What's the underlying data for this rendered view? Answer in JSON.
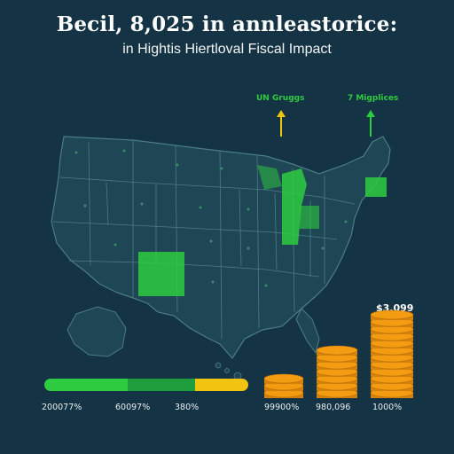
{
  "header": {
    "title": "Becil, 8,025 in annleastorice:",
    "subtitle": "in Hightis Hiertloval Fiscal Impact"
  },
  "callouts": [
    {
      "label": "UN Gruggs",
      "color": "#2ecc40",
      "arrow_color": "#f1c40f"
    },
    {
      "label": "7 Migplices",
      "color": "#2ecc40",
      "arrow_color": "#2ecc40"
    }
  ],
  "progress": {
    "segments": [
      {
        "color": "#2ecc40",
        "fraction": 0.41
      },
      {
        "color": "#1f9e3e",
        "fraction": 0.33
      },
      {
        "color": "#f1c40f",
        "fraction": 0.26
      }
    ],
    "labels": [
      "200077%",
      "60097%",
      "380%"
    ]
  },
  "coins": {
    "amount_label": "$3,099",
    "stacks": [
      {
        "label": "99900%",
        "coins": 3
      },
      {
        "label": "980,096",
        "coins": 7
      },
      {
        "label": "1000%",
        "coins": 12
      }
    ],
    "color": "#f39c12"
  },
  "colors": {
    "background": "#143344",
    "map_fill": "#1e4654",
    "map_stroke": "#4b7d86",
    "highlight": "#2ecc40"
  }
}
